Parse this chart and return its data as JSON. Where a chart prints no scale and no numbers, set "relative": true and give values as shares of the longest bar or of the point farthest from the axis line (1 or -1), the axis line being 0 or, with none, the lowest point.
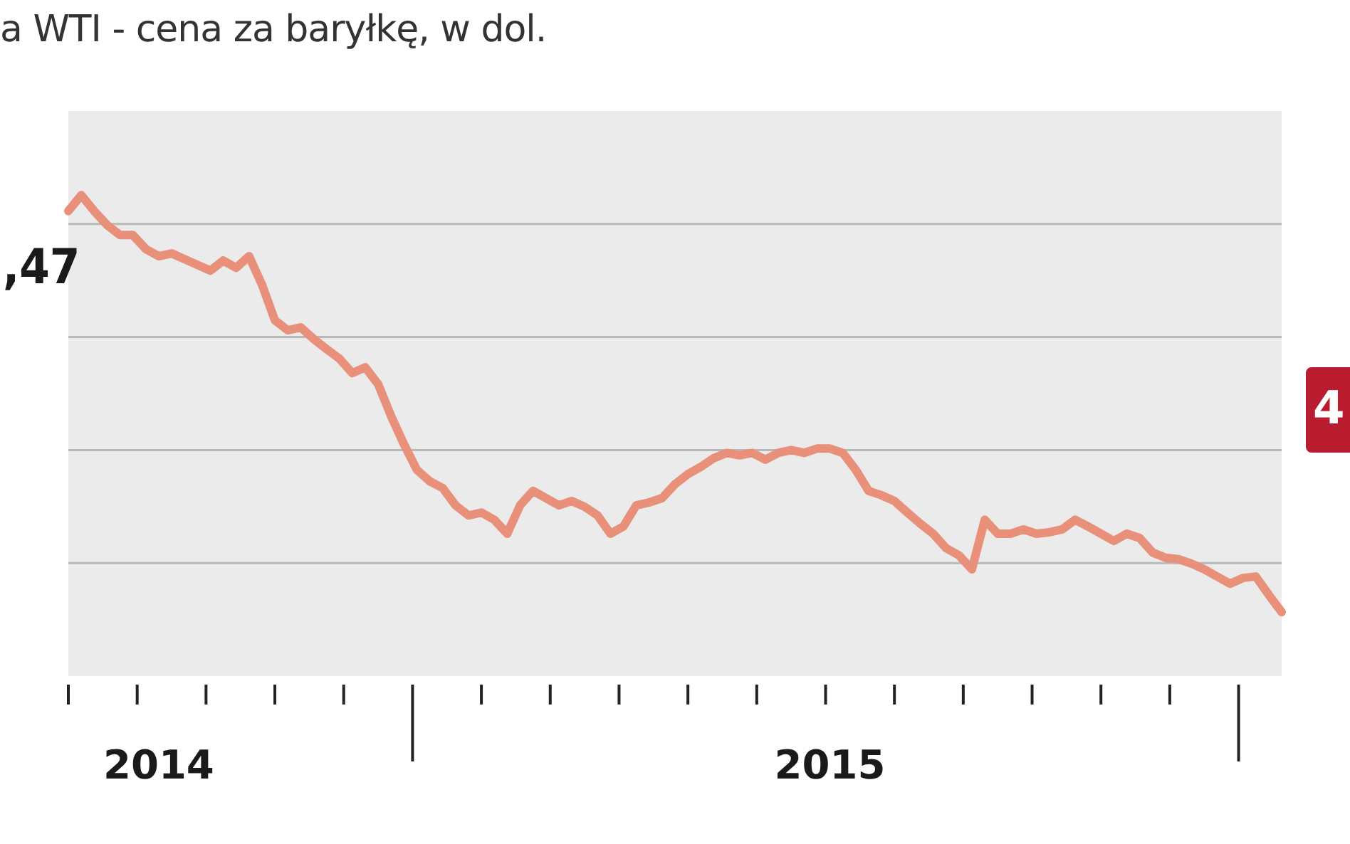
{
  "chart_data": {
    "type": "line",
    "title": "a WTI - cena za baryłkę, w dol.",
    "relative": true,
    "grid": "y",
    "marker": "none",
    "line_style": "solid",
    "annotations": [
      ",47",
      "4"
    ],
    "categories": [
      null,
      null,
      null,
      null,
      null,
      null,
      null,
      "2014",
      null,
      null,
      null,
      null,
      null,
      null,
      null,
      null,
      null,
      null,
      null,
      null,
      null,
      null,
      null,
      null,
      null,
      null,
      null,
      null,
      null,
      null,
      null,
      null,
      null,
      null,
      null,
      null,
      null,
      null,
      null,
      null,
      null,
      null,
      null,
      null,
      null,
      null,
      null,
      null,
      null,
      null,
      null,
      null,
      null,
      null,
      null,
      null,
      null,
      null,
      null,
      "2015",
      null,
      null,
      null,
      null,
      null,
      null,
      null,
      null,
      null,
      null,
      null,
      null,
      null,
      null,
      null,
      null,
      null,
      null,
      null,
      null,
      null,
      null,
      null,
      null,
      null,
      null,
      null,
      null,
      null,
      null,
      null,
      null,
      null,
      null,
      null
    ],
    "series": [
      {
        "color": "#e8907a",
        "values": [
          0.967,
          1,
          0.967,
          0.938,
          0.917,
          0.917,
          0.888,
          0.873,
          0.879,
          0.867,
          0.855,
          0.843,
          0.864,
          0.849,
          0.873,
          0.814,
          0.74,
          0.719,
          0.725,
          0.701,
          0.68,
          0.66,
          0.63,
          0.642,
          0.607,
          0.541,
          0.482,
          0.429,
          0.405,
          0.391,
          0.355,
          0.334,
          0.34,
          0.325,
          0.296,
          0.355,
          0.385,
          0.37,
          0.355,
          0.364,
          0.352,
          0.334,
          0.296,
          0.311,
          0.355,
          0.361,
          0.37,
          0.399,
          0.42,
          0.435,
          0.453,
          0.464,
          0.459,
          0.464,
          0.45,
          0.464,
          0.47,
          0.464,
          0.473,
          0.473,
          0.464,
          0.429,
          0.385,
          0.376,
          0.364,
          0.34,
          0.317,
          0.296,
          0.266,
          0.251,
          0.222,
          0.325,
          0.296,
          0.296,
          0.305,
          0.296,
          0.299,
          0.305,
          0.325,
          0.311,
          0.296,
          0.281,
          0.296,
          0.287,
          0.257,
          0.246,
          0.243,
          0.234,
          0.222,
          0.207,
          0.192,
          0.204,
          0.207,
          0.169,
          0.133
        ]
      }
    ]
  }
}
